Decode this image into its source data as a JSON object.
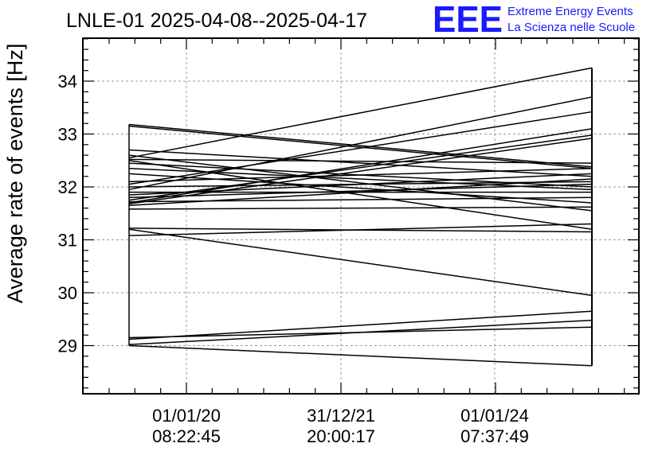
{
  "chart_data": {
    "type": "line",
    "title": "LNLE-01 2025-04-08--2025-04-17",
    "ylabel": "Average rate of events [Hz]",
    "xlabel": "",
    "ylim": [
      28,
      34.9
    ],
    "y_ticks": [
      "29",
      "30",
      "31",
      "32",
      "33",
      "34"
    ],
    "x_ticks": [
      {
        "date": "01/01/20",
        "time": "08:22:45"
      },
      {
        "date": "31/12/21",
        "time": "20:00:17"
      },
      {
        "date": "01/01/24",
        "time": "07:37:49"
      }
    ],
    "grid": true,
    "line_color": "#000000",
    "series": [
      {
        "values": [
          32.52,
          32.45
        ]
      },
      {
        "values": [
          32.55,
          34.25
        ]
      },
      {
        "values": [
          31.95,
          33.7
        ]
      },
      {
        "values": [
          32.05,
          33.42
        ]
      },
      {
        "values": [
          31.2,
          29.95
        ]
      },
      {
        "values": [
          31.08,
          31.3
        ]
      },
      {
        "values": [
          31.22,
          31.15
        ]
      },
      {
        "values": [
          29.12,
          29.65
        ]
      },
      {
        "values": [
          29.02,
          29.48
        ]
      },
      {
        "values": [
          29.15,
          29.35
        ]
      },
      {
        "values": [
          29.0,
          28.62
        ]
      },
      {
        "values": [
          31.7,
          33.1
        ]
      },
      {
        "values": [
          31.75,
          32.98
        ]
      },
      {
        "values": [
          33.18,
          32.38
        ]
      },
      {
        "values": [
          33.15,
          32.35
        ]
      },
      {
        "values": [
          32.7,
          32.2
        ]
      },
      {
        "values": [
          32.6,
          31.55
        ]
      },
      {
        "values": [
          32.35,
          31.95
        ]
      },
      {
        "values": [
          32.1,
          32.35
        ]
      },
      {
        "values": [
          31.85,
          32.25
        ]
      },
      {
        "values": [
          31.8,
          32.05
        ]
      },
      {
        "values": [
          31.72,
          31.8
        ]
      },
      {
        "values": [
          31.65,
          32.15
        ]
      },
      {
        "values": [
          31.58,
          31.62
        ]
      },
      {
        "values": [
          32.25,
          31.7
        ]
      },
      {
        "values": [
          32.0,
          32.1
        ]
      },
      {
        "values": [
          31.9,
          31.9
        ]
      },
      {
        "values": [
          32.45,
          32.0
        ]
      },
      {
        "values": [
          31.68,
          32.92
        ]
      },
      {
        "values": [
          32.5,
          31.2
        ]
      }
    ]
  },
  "logo": {
    "letters": "EEE",
    "line1": "Extreme Energy Events",
    "line2": "La Scienza nelle Scuole",
    "color": "#1a1aff"
  }
}
